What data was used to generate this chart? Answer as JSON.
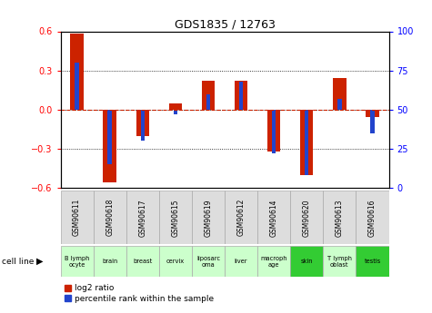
{
  "title": "GDS1835 / 12763",
  "samples": [
    "GSM90611",
    "GSM90618",
    "GSM90617",
    "GSM90615",
    "GSM90619",
    "GSM90612",
    "GSM90614",
    "GSM90620",
    "GSM90613",
    "GSM90616"
  ],
  "cell_lines": [
    "B lymph\nocyte",
    "brain",
    "breast",
    "cervix",
    "liposarc\noma",
    "liver",
    "macroph\nage",
    "skin",
    "T lymph\noblast",
    "testis"
  ],
  "cell_line_colors": [
    "#ccffcc",
    "#ccffcc",
    "#ccffcc",
    "#ccffcc",
    "#ccffcc",
    "#ccffcc",
    "#ccffcc",
    "#33cc33",
    "#ccffcc",
    "#33cc33"
  ],
  "log2_ratio": [
    0.58,
    -0.56,
    -0.2,
    0.05,
    0.22,
    0.22,
    -0.32,
    -0.5,
    0.24,
    -0.06
  ],
  "pct_rank_raw": [
    80,
    15,
    30,
    47,
    60,
    68,
    22,
    8,
    57,
    35
  ],
  "ylim": [
    -0.6,
    0.6
  ],
  "yticks_left": [
    -0.6,
    -0.3,
    0.0,
    0.3,
    0.6
  ],
  "yticks_right": [
    0,
    25,
    50,
    75,
    100
  ],
  "bar_color_red": "#cc2200",
  "bar_color_blue": "#2244cc",
  "bar_width": 0.4,
  "blue_bar_width": 0.12,
  "zero_line_color": "#cc2200",
  "gsm_bg": "#dddddd",
  "cell_line_label": "cell line",
  "legend_red": "log2 ratio",
  "legend_blue": "percentile rank within the sample"
}
